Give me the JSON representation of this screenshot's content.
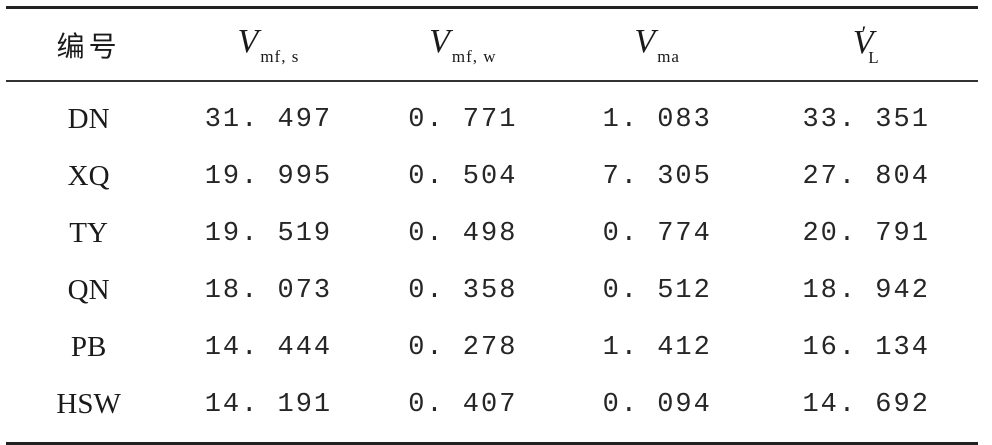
{
  "table": {
    "headers": [
      {
        "text": "编号"
      },
      {
        "var": "V",
        "sub": "mf, s"
      },
      {
        "var": "V",
        "sub": "mf, w"
      },
      {
        "var": "V",
        "sub": "ma"
      },
      {
        "var": "V",
        "sub": "L",
        "prime": "′"
      }
    ],
    "rows": [
      [
        "DN",
        "31. 497",
        "0. 771",
        "1. 083",
        "33. 351"
      ],
      [
        "XQ",
        "19. 995",
        "0. 504",
        "7. 305",
        "27. 804"
      ],
      [
        "TY",
        "19. 519",
        "0. 498",
        "0. 774",
        "20. 791"
      ],
      [
        "QN",
        "18. 073",
        "0. 358",
        "0. 512",
        "18. 942"
      ],
      [
        "PB",
        "14. 444",
        "0. 278",
        "1. 412",
        "16. 134"
      ],
      [
        "HSW",
        "14. 191",
        "0. 407",
        "0. 094",
        "14. 692"
      ]
    ]
  }
}
